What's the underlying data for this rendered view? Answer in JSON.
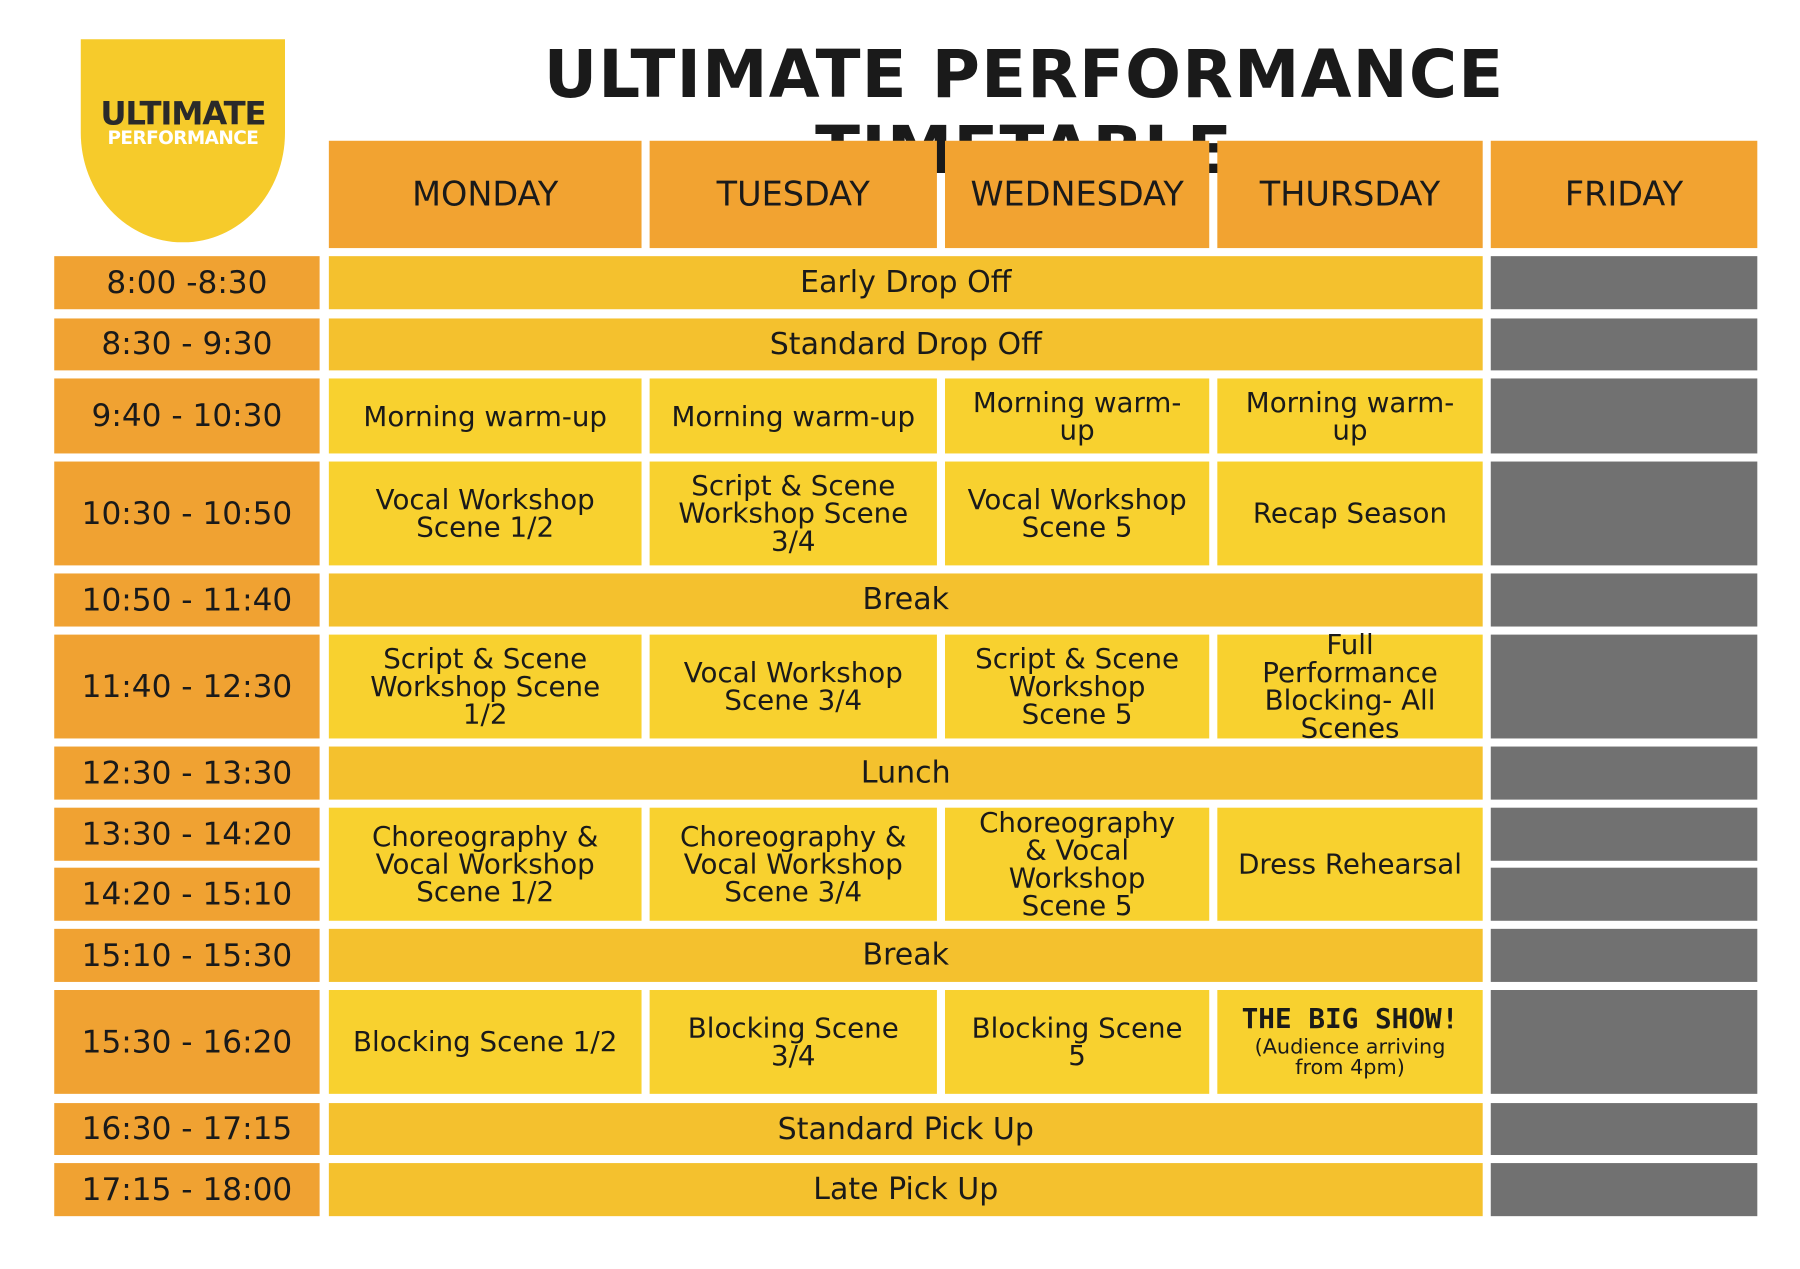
{
  "logo": {
    "line1": "ULTIMATE",
    "line2": "PERFORMANCE"
  },
  "title": "ULTIMATE PERFORMANCE TIMETABLE",
  "days": [
    "MONDAY",
    "TUESDAY",
    "WEDNESDAY",
    "THURSDAY",
    "FRIDAY"
  ],
  "slots": [
    "8:00 -8:30",
    "8:30 - 9:30",
    "9:40 - 10:30",
    "10:30 - 10:50",
    "10:50 - 11:40",
    "11:40 - 12:30",
    "12:30 - 13:30",
    "13:30 - 14:20",
    "14:20 - 15:10",
    "15:10 - 15:30",
    "15:30 - 16:20",
    "16:30 - 17:15",
    "17:15 - 18:00"
  ],
  "schedule": [
    {
      "all_week": "Early Drop Off"
    },
    {
      "all_week": "Standard Drop Off"
    },
    {
      "sessions": [
        "Morning warm-up",
        "Morning warm-up",
        "Morning warm-up",
        "Morning warm-up"
      ]
    },
    {
      "sessions": [
        "Vocal Workshop Scene 1/2",
        "Script & Scene Workshop Scene 3/4",
        "Vocal Workshop Scene 5",
        "Recap Season"
      ]
    },
    {
      "all_week": "Break"
    },
    {
      "sessions": [
        "Script & Scene Workshop Scene 1/2",
        "Vocal Workshop Scene 3/4",
        "Script & Scene Workshop Scene 5",
        "Full Performance Blocking- All Scenes"
      ]
    },
    {
      "all_week": "Lunch"
    },
    {
      "sessions": [
        "Choreography & Vocal Workshop Scene 1/2",
        "Choreography & Vocal Workshop Scene 3/4",
        "Choreography & Vocal Workshop Scene 5",
        "Dress Rehearsal"
      ]
    },
    {
      "all_week": "Break"
    },
    {
      "sessions": [
        "Blocking Scene 1/2",
        "Blocking Scene 3/4",
        "Blocking Scene 5",
        {
          "title": "THE BIG SHOW!",
          "note": "(Audience arriving from 4pm)"
        }
      ]
    },
    {
      "all_week": "Standard Pick Up"
    },
    {
      "all_week": "Late Pick Up"
    }
  ]
}
